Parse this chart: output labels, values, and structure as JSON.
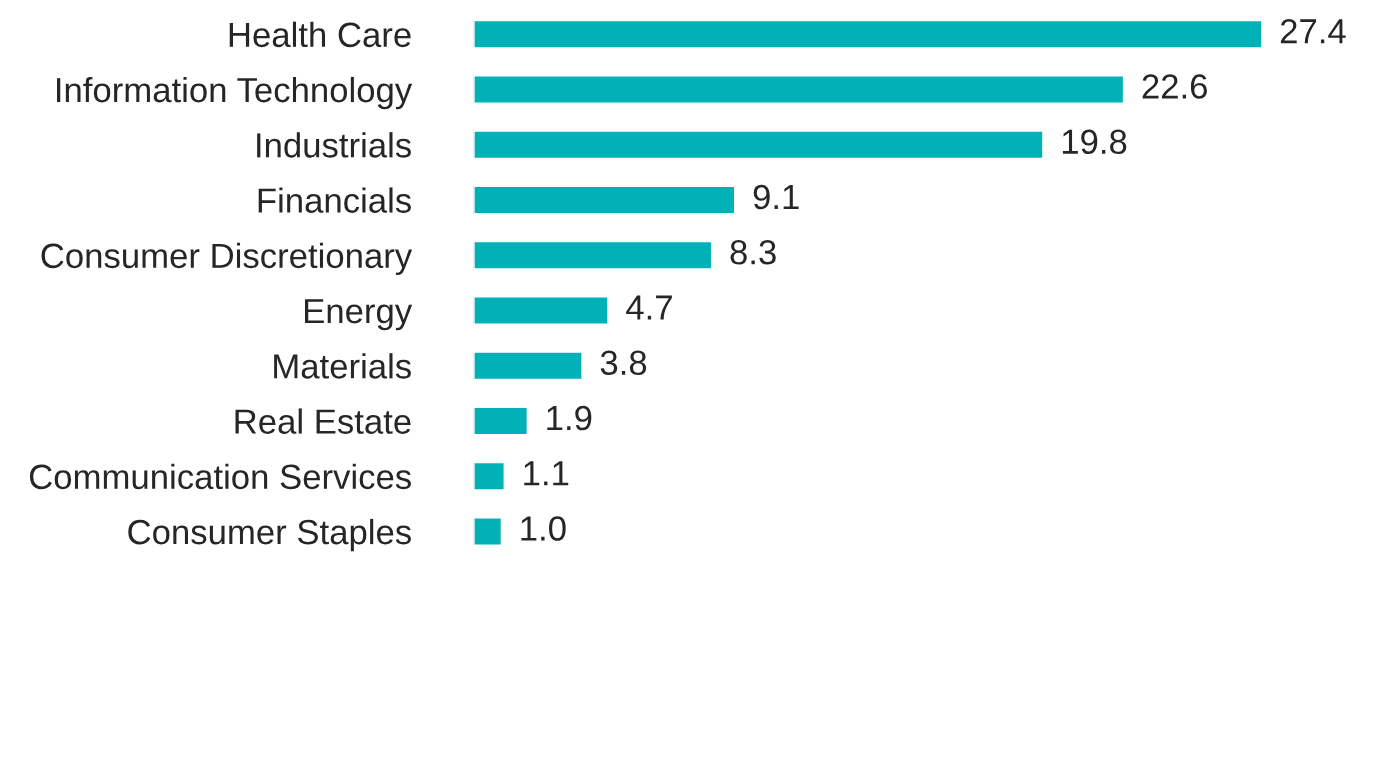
{
  "chart_data": {
    "type": "bar",
    "orientation": "horizontal",
    "categories": [
      "Health Care",
      "Information Technology",
      "Industrials",
      "Financials",
      "Consumer Discretionary",
      "Energy",
      "Materials",
      "Real Estate",
      "Communication Services",
      "Consumer Staples"
    ],
    "values": [
      27.4,
      22.6,
      19.8,
      9.1,
      8.3,
      4.7,
      3.8,
      1.9,
      1.1,
      1.0
    ],
    "value_labels": [
      "27.4",
      "22.6",
      "19.8",
      "9.1",
      "8.3",
      "4.7",
      "3.8",
      "1.9",
      "1.1",
      "1.0"
    ],
    "color": "#00b2b8",
    "tick_labels": "y",
    "grid": false,
    "legend": false
  }
}
